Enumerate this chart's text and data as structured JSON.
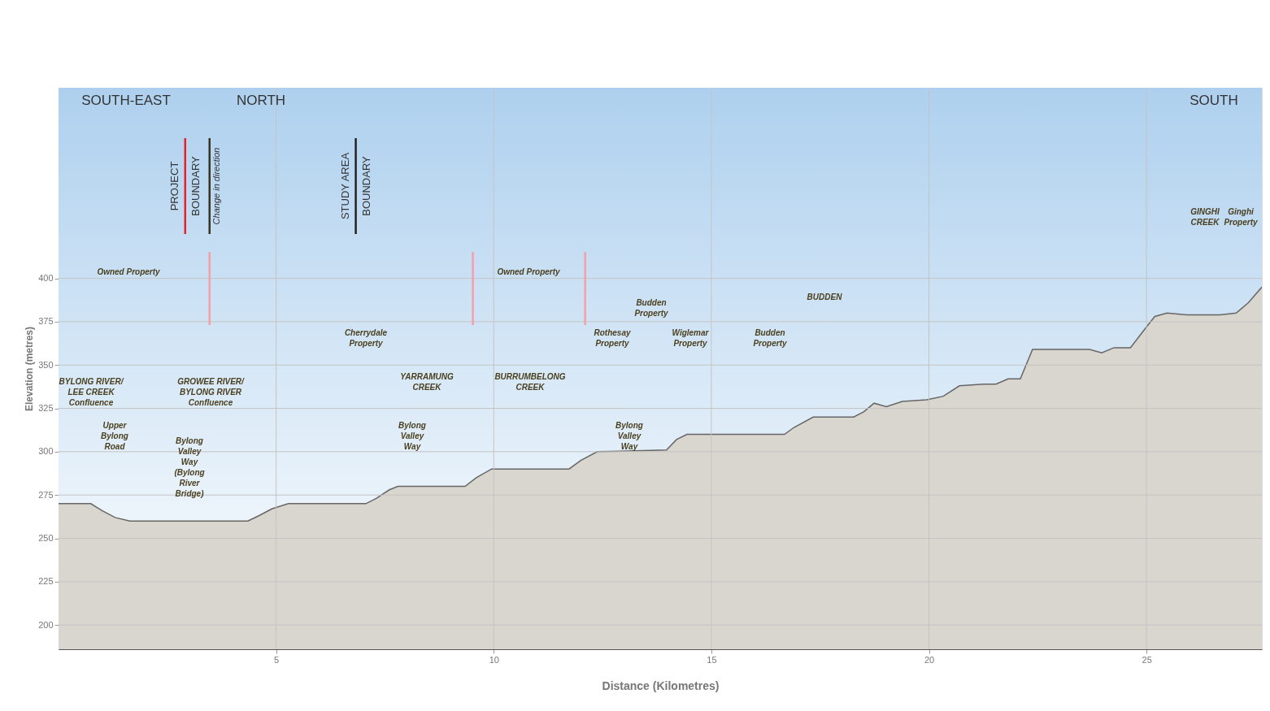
{
  "chart_data": {
    "type": "area",
    "xlabel": "Distance (Kilometres)",
    "ylabel": "Elevation (metres)",
    "xlim": [
      0,
      27.65
    ],
    "ylim": [
      186,
      510
    ],
    "xticks": [
      5,
      10,
      15,
      20,
      25
    ],
    "yticks": [
      200,
      225,
      250,
      275,
      300,
      325,
      350,
      375,
      400
    ],
    "grid": true,
    "series": [
      {
        "color": "#d9d5cf",
        "x": [
          0,
          0.74,
          1.0,
          1.3,
          1.64,
          4.35,
          4.6,
          4.9,
          5.28,
          7.06,
          7.3,
          7.6,
          7.8,
          9.34,
          9.6,
          9.95,
          11.73,
          12.0,
          12.38,
          13.97,
          14.2,
          14.44,
          16.68,
          16.9,
          17.34,
          18.27,
          18.5,
          18.74,
          19.02,
          19.39,
          19.95,
          20.33,
          20.7,
          21.26,
          21.54,
          21.82,
          22.1,
          22.38,
          23.69,
          23.97,
          24.25,
          24.63,
          25.0,
          25.19,
          25.47,
          25.93,
          26.68,
          27.06,
          27.34,
          27.65
        ],
        "values": [
          270,
          270,
          266,
          262,
          260,
          260,
          263,
          267,
          270,
          270,
          273,
          278,
          280,
          280,
          285,
          290,
          290,
          295,
          300,
          301,
          307,
          310,
          310,
          314,
          320,
          320,
          323,
          328,
          326,
          329,
          330,
          332,
          338,
          339,
          339,
          342,
          342,
          359,
          359,
          357,
          360,
          360,
          372,
          378,
          380,
          379,
          379,
          380,
          386,
          395
        ]
      }
    ],
    "ref_lines": [
      {
        "axis": "x",
        "value": 2.91,
        "label": "PROJECT\nBOUNDARY",
        "color": "#e8202a"
      },
      {
        "axis": "x",
        "value": 3.47,
        "label": "Change in direction",
        "color": "#3a3320"
      },
      {
        "axis": "x",
        "value": 6.83,
        "label": "STUDY AREA\nBOUNDARY",
        "color": "#222222"
      },
      {
        "axis": "x",
        "value": 3.47,
        "color": "#f4a0a8"
      },
      {
        "axis": "x",
        "value": 9.52,
        "color": "#f4a0a8"
      },
      {
        "axis": "x",
        "value": 12.1,
        "color": "#f4a0a8"
      }
    ],
    "annotations": [
      "SOUTH-EAST",
      "NORTH",
      "SOUTH",
      "Owned Property",
      "Owned Property",
      "Cherrydale\nProperty",
      "Budden\nProperty",
      "BUDDEN",
      "Rothesay\nProperty",
      "Wiglemar\nProperty",
      "Budden\nProperty",
      "GINGHI\nCREEK",
      "Ginghi\nProperty",
      "BYLONG RIVER/\nLEE CREEK\nConfluence",
      "GROWEE RIVER/\nBYLONG RIVER\nConfluence",
      "YARRAMUNG\nCREEK",
      "BURRUMBELONG\nCREEK",
      "Upper\nBylong\nRoad",
      "Bylong\nValley\nWay\n(Bylong\nRiver\nBridge)",
      "Bylong\nValley\nWay",
      "Bylong\nValley\nWay"
    ]
  }
}
